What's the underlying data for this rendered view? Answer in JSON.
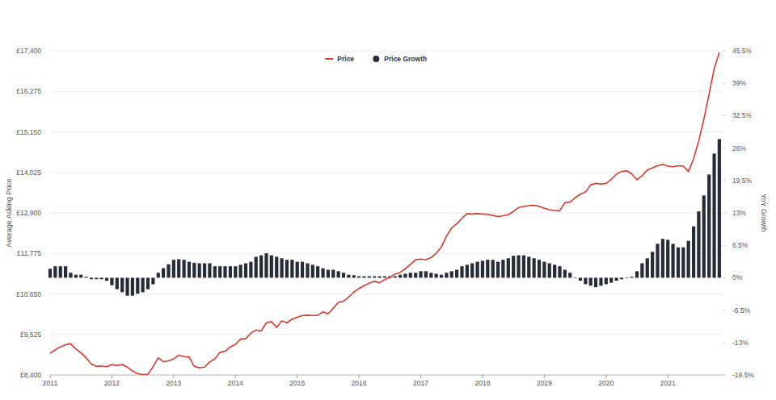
{
  "chart_data": {
    "type": "line",
    "y_label": "Average Asking Price",
    "y2_label": "YoY Growth",
    "legend": "top",
    "grid": true,
    "x": [
      2011,
      2011.083,
      2011.167,
      2011.25,
      2011.333,
      2011.417,
      2011.5,
      2011.583,
      2011.667,
      2011.75,
      2011.833,
      2011.917,
      2012,
      2012.083,
      2012.167,
      2012.25,
      2012.333,
      2012.417,
      2012.5,
      2012.583,
      2012.667,
      2012.75,
      2012.833,
      2012.917,
      2013,
      2013.083,
      2013.167,
      2013.25,
      2013.333,
      2013.417,
      2013.5,
      2013.583,
      2013.667,
      2013.75,
      2013.833,
      2013.917,
      2014,
      2014.083,
      2014.167,
      2014.25,
      2014.333,
      2014.417,
      2014.5,
      2014.583,
      2014.667,
      2014.75,
      2014.833,
      2014.917,
      2015,
      2015.083,
      2015.167,
      2015.25,
      2015.333,
      2015.417,
      2015.5,
      2015.583,
      2015.667,
      2015.75,
      2015.833,
      2015.917,
      2016,
      2016.083,
      2016.167,
      2016.25,
      2016.333,
      2016.417,
      2016.5,
      2016.583,
      2016.667,
      2016.75,
      2016.833,
      2016.917,
      2017,
      2017.083,
      2017.167,
      2017.25,
      2017.333,
      2017.417,
      2017.5,
      2017.583,
      2017.667,
      2017.75,
      2017.833,
      2017.917,
      2018,
      2018.083,
      2018.167,
      2018.25,
      2018.333,
      2018.417,
      2018.5,
      2018.583,
      2018.667,
      2018.75,
      2018.833,
      2018.917,
      2019,
      2019.083,
      2019.167,
      2019.25,
      2019.333,
      2019.417,
      2019.5,
      2019.583,
      2019.667,
      2019.75,
      2019.833,
      2019.917,
      2020,
      2020.083,
      2020.167,
      2020.25,
      2020.333,
      2020.417,
      2020.5,
      2020.583,
      2020.667,
      2020.75,
      2020.833,
      2020.917,
      2021,
      2021.083,
      2021.167,
      2021.25,
      2021.333,
      2021.417,
      2021.5,
      2021.583,
      2021.667,
      2021.75,
      2021.833
    ],
    "xlim": [
      2011,
      2021.9
    ],
    "xticks": [
      2011,
      2012,
      2013,
      2014,
      2015,
      2016,
      2017,
      2018,
      2019,
      2020,
      2021
    ],
    "ylim": [
      8400,
      17400
    ],
    "yticks": [
      {
        "value": 8400,
        "label": "£8,400"
      },
      {
        "value": 9525,
        "label": "£9,525"
      },
      {
        "value": 10650,
        "label": "£10,650"
      },
      {
        "value": 11775,
        "label": "£11,775"
      },
      {
        "value": 12900,
        "label": "£12,900"
      },
      {
        "value": 14025,
        "label": "£14,025"
      },
      {
        "value": 15150,
        "label": "£15,150"
      },
      {
        "value": 16275,
        "label": "£16,275"
      },
      {
        "value": 17400,
        "label": "£17,400"
      }
    ],
    "y2lim": [
      -19.5,
      45.5
    ],
    "y2ticks": [
      {
        "value": -19.5,
        "label": "-19.5%"
      },
      {
        "value": -13,
        "label": "-13%"
      },
      {
        "value": -6.5,
        "label": "-6.5%"
      },
      {
        "value": 0,
        "label": "0%"
      },
      {
        "value": 6.5,
        "label": "6.5%"
      },
      {
        "value": 13,
        "label": "13%"
      },
      {
        "value": 19.5,
        "label": "19.5%"
      },
      {
        "value": 26,
        "label": "26%"
      },
      {
        "value": 32.5,
        "label": "32.5%"
      },
      {
        "value": 39,
        "label": "39%"
      },
      {
        "value": 45.5,
        "label": "45.5%"
      }
    ],
    "series": [
      {
        "name": "Price",
        "type": "line",
        "color": "#d63a2f",
        "values": [
          9000,
          9100,
          9180,
          9240,
          9270,
          9120,
          9020,
          8880,
          8700,
          8640,
          8650,
          8630,
          8690,
          8660,
          8690,
          8620,
          8510,
          8440,
          8410,
          8420,
          8630,
          8880,
          8770,
          8790,
          8850,
          8950,
          8910,
          8900,
          8640,
          8600,
          8620,
          8760,
          8850,
          9030,
          9060,
          9180,
          9250,
          9400,
          9410,
          9560,
          9650,
          9620,
          9850,
          9880,
          9720,
          9900,
          9850,
          9950,
          10000,
          10050,
          10060,
          10050,
          10060,
          10150,
          10100,
          10250,
          10420,
          10450,
          10560,
          10700,
          10800,
          10880,
          10950,
          11000,
          10960,
          11050,
          11110,
          11200,
          11250,
          11350,
          11470,
          11600,
          11620,
          11600,
          11660,
          11780,
          11950,
          12260,
          12480,
          12600,
          12750,
          12880,
          12870,
          12880,
          12870,
          12860,
          12830,
          12800,
          12820,
          12850,
          12940,
          13050,
          13080,
          13100,
          13110,
          13080,
          13030,
          12990,
          12960,
          12960,
          13180,
          13200,
          13320,
          13420,
          13480,
          13680,
          13720,
          13700,
          13720,
          13830,
          13980,
          14050,
          14070,
          13980,
          13820,
          13930,
          14090,
          14150,
          14210,
          14250,
          14200,
          14180,
          14210,
          14200,
          14050,
          14400,
          14900,
          15500,
          16200,
          16900,
          17350
        ]
      },
      {
        "name": "Price Growth",
        "type": "bar",
        "axis": "y2",
        "color": "#262b38",
        "marker": "circle",
        "values": [
          1.8,
          2.3,
          2.3,
          2.3,
          1.0,
          0.6,
          0.6,
          0.2,
          -0.3,
          -0.3,
          -0.3,
          -0.6,
          -1.5,
          -2.3,
          -2.9,
          -3.6,
          -3.6,
          -3.2,
          -2.9,
          -2.3,
          -1.3,
          1.0,
          1.9,
          2.7,
          3.6,
          3.7,
          3.6,
          3.2,
          3.0,
          2.9,
          2.9,
          2.9,
          2.3,
          2.3,
          2.3,
          2.3,
          2.3,
          2.6,
          2.9,
          3.2,
          4.2,
          4.5,
          4.9,
          4.5,
          4.2,
          3.9,
          3.6,
          3.6,
          3.2,
          3.2,
          2.9,
          2.6,
          2.3,
          1.9,
          1.6,
          1.6,
          1.3,
          1.0,
          0.6,
          0.5,
          0.3,
          0.3,
          0.3,
          0.3,
          0.3,
          0.3,
          0.3,
          0.3,
          0.6,
          0.8,
          1.0,
          1.0,
          1.3,
          1.3,
          1.0,
          0.8,
          0.6,
          1.0,
          1.3,
          1.6,
          2.3,
          2.6,
          2.9,
          3.2,
          3.4,
          3.6,
          3.6,
          3.2,
          3.6,
          3.9,
          4.4,
          4.5,
          4.5,
          4.2,
          3.9,
          3.6,
          3.2,
          2.9,
          2.6,
          2.3,
          1.6,
          1.0,
          0,
          -0.6,
          -1.3,
          -1.6,
          -1.9,
          -1.6,
          -1.3,
          -1.0,
          -0.6,
          -0.3,
          0,
          0.2,
          1.3,
          2.9,
          3.9,
          5.2,
          6.8,
          7.8,
          7.6,
          6.8,
          6.1,
          6.1,
          7.4,
          10.3,
          13.3,
          16.5,
          20.7,
          24.9,
          27.8
        ]
      }
    ]
  }
}
